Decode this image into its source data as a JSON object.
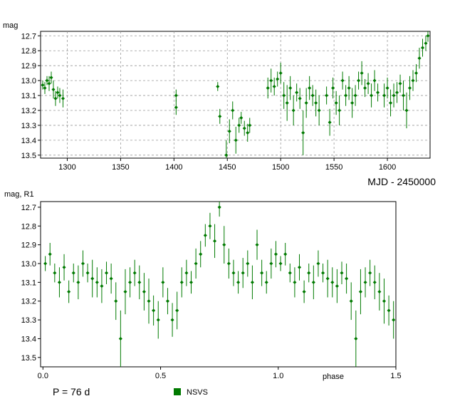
{
  "chart_data": [
    {
      "type": "scatter",
      "title": "",
      "xlabel": "MJD - 2450000",
      "ylabel": "mag",
      "xlim": [
        1275,
        1640
      ],
      "ylim": [
        13.52,
        12.67
      ],
      "y_inverted": true,
      "grid": true,
      "xticks": [
        1300,
        1350,
        1400,
        1450,
        1500,
        1550,
        1600
      ],
      "xtick_labels": [
        "1300",
        "1350",
        "1400",
        "1450",
        "1500",
        "1550",
        "1600"
      ],
      "yticks": [
        12.7,
        12.8,
        12.9,
        13.0,
        13.1,
        13.2,
        13.3,
        13.4,
        13.5
      ],
      "ytick_labels": [
        "12.7",
        "12.8",
        "12.9",
        "13.0",
        "13.1",
        "13.2",
        "13.3",
        "13.4",
        "13.5"
      ],
      "error_bars": true,
      "series": [
        {
          "color": "#007a00",
          "x": [
            1277,
            1279,
            1281,
            1283,
            1285,
            1287,
            1289,
            1291,
            1293,
            1296,
            1402,
            1402,
            1441,
            1443,
            1449,
            1452,
            1455,
            1458,
            1461,
            1463,
            1466,
            1469,
            1471,
            1488,
            1491,
            1494,
            1497,
            1500,
            1503,
            1506,
            1509,
            1512,
            1515,
            1518,
            1521,
            1524,
            1527,
            1530,
            1533,
            1536,
            1543,
            1546,
            1549,
            1552,
            1555,
            1558,
            1561,
            1564,
            1567,
            1570,
            1573,
            1576,
            1579,
            1582,
            1585,
            1588,
            1591,
            1597,
            1600,
            1603,
            1606,
            1609,
            1612,
            1615,
            1618,
            1621,
            1624,
            1627,
            1630,
            1633,
            1636,
            1638
          ],
          "y": [
            13.03,
            13.05,
            13.0,
            13.02,
            12.98,
            13.06,
            13.12,
            13.08,
            13.1,
            13.12,
            13.1,
            13.18,
            13.04,
            13.24,
            13.5,
            13.34,
            13.2,
            13.4,
            13.3,
            13.25,
            13.32,
            13.35,
            13.3,
            13.05,
            13.0,
            13.04,
            12.99,
            12.95,
            13.1,
            13.15,
            13.05,
            13.2,
            13.08,
            13.12,
            13.35,
            13.15,
            13.05,
            13.1,
            13.15,
            13.2,
            13.1,
            13.28,
            13.05,
            13.15,
            13.2,
            13.0,
            13.1,
            13.05,
            13.15,
            13.1,
            13.0,
            12.95,
            13.05,
            13.02,
            13.1,
            13.0,
            13.08,
            13.1,
            13.05,
            13.15,
            13.1,
            13.08,
            13.02,
            13.1,
            13.2,
            13.05,
            13.0,
            12.95,
            12.85,
            12.78,
            12.75,
            12.7
          ],
          "yerr": [
            0.03,
            0.04,
            0.03,
            0.05,
            0.04,
            0.06,
            0.05,
            0.04,
            0.05,
            0.06,
            0.04,
            0.05,
            0.03,
            0.05,
            0.1,
            0.08,
            0.06,
            0.09,
            0.05,
            0.04,
            0.05,
            0.06,
            0.05,
            0.07,
            0.08,
            0.06,
            0.05,
            0.07,
            0.09,
            0.12,
            0.08,
            0.1,
            0.06,
            0.07,
            0.15,
            0.1,
            0.08,
            0.07,
            0.09,
            0.1,
            0.06,
            0.09,
            0.07,
            0.08,
            0.1,
            0.06,
            0.07,
            0.08,
            0.1,
            0.07,
            0.06,
            0.08,
            0.06,
            0.07,
            0.08,
            0.07,
            0.06,
            0.08,
            0.07,
            0.09,
            0.08,
            0.07,
            0.06,
            0.1,
            0.12,
            0.08,
            0.07,
            0.06,
            0.07,
            0.06,
            0.05,
            0.04
          ]
        }
      ]
    },
    {
      "type": "scatter",
      "title": "",
      "xlabel": "phase",
      "ylabel": "mag, R1",
      "xlim": [
        -0.01,
        1.5
      ],
      "ylim": [
        13.55,
        12.67
      ],
      "y_inverted": true,
      "grid": false,
      "xticks": [
        0.0,
        0.5,
        1.0,
        1.5
      ],
      "xtick_labels": [
        "0.0",
        "0.5",
        "1.0",
        "1.5"
      ],
      "yticks": [
        12.7,
        12.8,
        12.9,
        13.0,
        13.1,
        13.2,
        13.3,
        13.4,
        13.5
      ],
      "ytick_labels": [
        "12.7",
        "12.8",
        "12.9",
        "13.0",
        "13.1",
        "13.2",
        "13.3",
        "13.4",
        "13.5"
      ],
      "error_bars": true,
      "annotation": "P = 76 d",
      "legend": {
        "position": "bottom-center",
        "entries": [
          "NSVS"
        ]
      },
      "series": [
        {
          "name": "NSVS",
          "color": "#007a00",
          "phase": [
            0.01,
            0.03,
            0.05,
            0.07,
            0.09,
            0.11,
            0.13,
            0.15,
            0.17,
            0.19,
            0.21,
            0.23,
            0.25,
            0.27,
            0.29,
            0.31,
            0.33,
            0.35,
            0.37,
            0.39,
            0.41,
            0.43,
            0.45,
            0.47,
            0.49,
            0.51,
            0.53,
            0.55,
            0.57,
            0.59,
            0.61,
            0.63,
            0.65,
            0.67,
            0.69,
            0.71,
            0.73,
            0.75,
            0.77,
            0.79,
            0.81,
            0.83,
            0.85,
            0.87,
            0.89,
            0.91,
            0.93,
            0.95,
            0.97,
            0.99
          ],
          "y": [
            13.0,
            12.95,
            13.05,
            13.1,
            13.02,
            13.15,
            13.05,
            13.1,
            13.0,
            13.05,
            13.08,
            13.1,
            13.12,
            13.05,
            13.08,
            13.2,
            13.4,
            13.15,
            13.1,
            13.05,
            13.1,
            13.15,
            13.2,
            13.25,
            13.3,
            13.1,
            13.2,
            13.3,
            13.25,
            13.1,
            13.05,
            13.1,
            13.0,
            12.95,
            12.85,
            12.8,
            12.88,
            12.7,
            12.9,
            13.0,
            13.05,
            13.1,
            13.05,
            13.0,
            13.1,
            12.9,
            13.05,
            13.1,
            13.0,
            12.95
          ],
          "yerr": [
            0.04,
            0.06,
            0.05,
            0.08,
            0.07,
            0.06,
            0.05,
            0.09,
            0.07,
            0.05,
            0.1,
            0.08,
            0.09,
            0.06,
            0.08,
            0.1,
            0.15,
            0.12,
            0.08,
            0.07,
            0.09,
            0.1,
            0.12,
            0.08,
            0.1,
            0.08,
            0.07,
            0.09,
            0.1,
            0.08,
            0.07,
            0.06,
            0.08,
            0.07,
            0.06,
            0.07,
            0.09,
            0.05,
            0.1,
            0.08,
            0.07,
            0.06,
            0.08,
            0.07,
            0.09,
            0.08,
            0.07,
            0.06,
            0.08,
            0.07
          ]
        }
      ]
    }
  ]
}
